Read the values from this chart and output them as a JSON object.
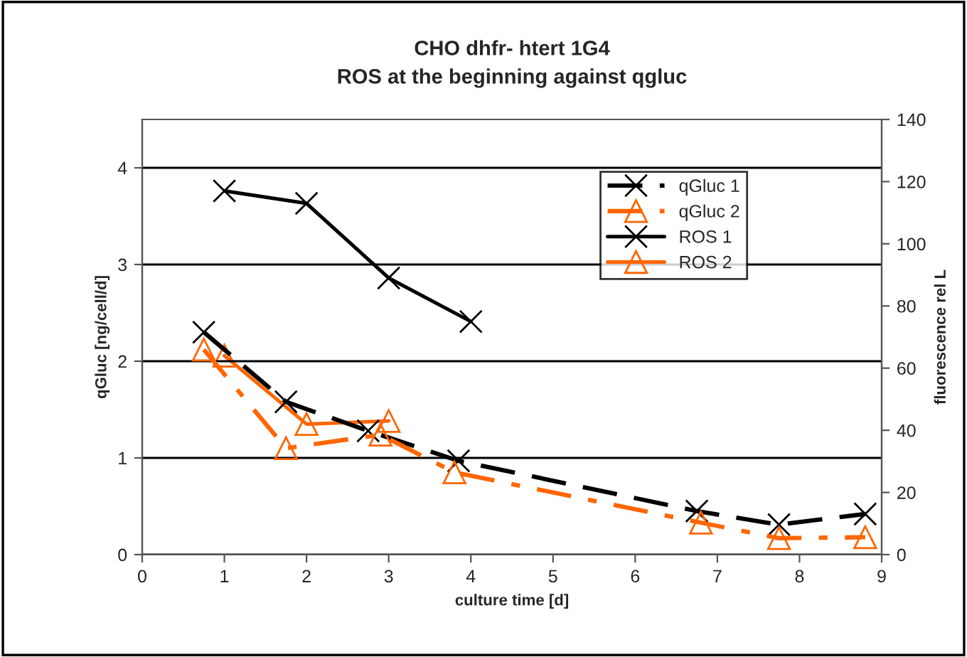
{
  "chart_data": {
    "type": "line",
    "title": "CHO dhfr- htert 1G4\nROS at the beginning against qgluc",
    "xlabel": "culture time [d]",
    "ylabel": "qGluc [ng/cell/d]",
    "y2label": "fluorescence rel L",
    "xlim": [
      0,
      9
    ],
    "xticks": [
      0,
      1,
      2,
      3,
      4,
      5,
      6,
      7,
      8,
      9
    ],
    "ylim": [
      0,
      4.5
    ],
    "yticks": [
      0,
      1,
      2,
      3,
      4
    ],
    "y2lim": [
      0,
      140
    ],
    "y2ticks": [
      0,
      20,
      40,
      60,
      80,
      100,
      120,
      140
    ],
    "grid": "y",
    "legend": "top right",
    "series": [
      {
        "name": "qGluc 1",
        "color": "#000000",
        "marker": "cross",
        "line_style": "dashed",
        "x": [
          0.75,
          1.75,
          2.75,
          3.85,
          6.75,
          7.75,
          8.8
        ],
        "values": [
          2.3,
          1.58,
          1.28,
          0.97,
          0.45,
          0.31,
          0.42
        ]
      },
      {
        "name": "qGluc 2",
        "color": "#ff6600",
        "marker": "triangle",
        "line_style": "dashdot",
        "x": [
          0.75,
          1.75,
          2.9,
          3.8,
          6.8,
          7.75,
          8.8
        ],
        "values": [
          2.12,
          1.1,
          1.24,
          0.85,
          0.33,
          0.17,
          0.18
        ]
      },
      {
        "name": "ROS 1",
        "color": "#000000",
        "marker": "cross",
        "line_style": "solid",
        "axis": "y2",
        "x": [
          1,
          2,
          3,
          4
        ],
        "values": [
          117,
          113,
          89,
          75
        ]
      },
      {
        "name": "ROS 2",
        "color": "#ff6600",
        "marker": "triangle",
        "line_style": "solid",
        "axis": "y2",
        "x": [
          1,
          2,
          3
        ],
        "values": [
          64,
          42,
          43
        ]
      }
    ]
  }
}
